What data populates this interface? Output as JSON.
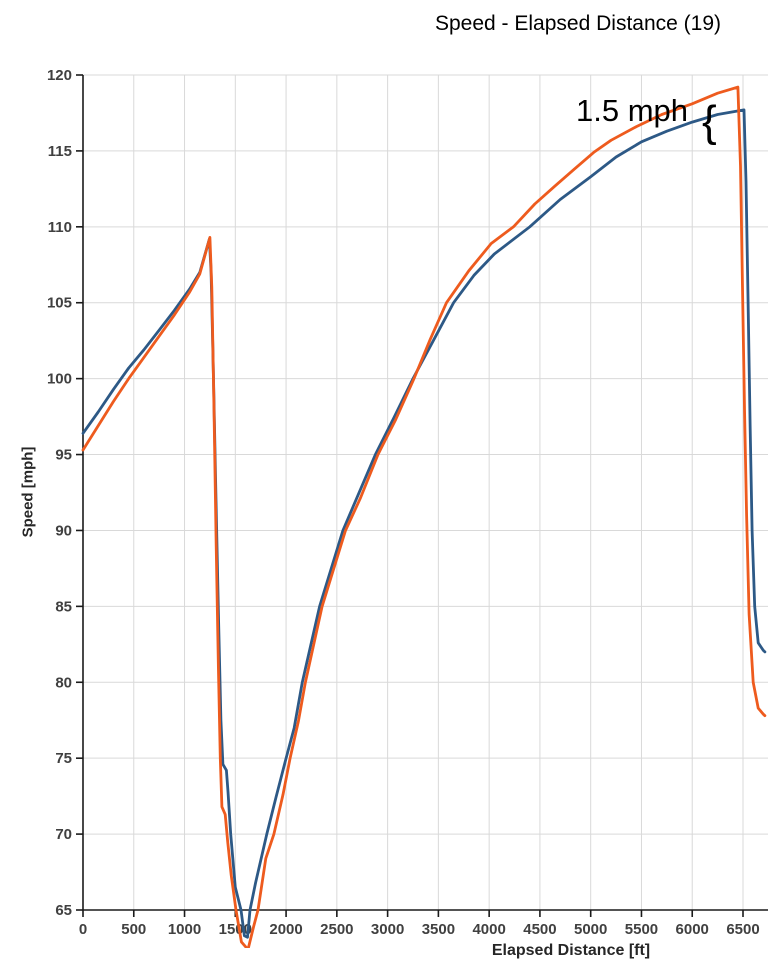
{
  "chart_data": {
    "type": "line",
    "title": "Speed - Elapsed Distance (19)",
    "xlabel": "Elapsed Distance [ft]",
    "ylabel": "Speed [mph]",
    "xlim": [
      0,
      6746
    ],
    "ylim": [
      65,
      120
    ],
    "xticks": [
      0,
      500,
      1000,
      1500,
      2000,
      2500,
      3000,
      3500,
      4000,
      4500,
      5000,
      5500,
      6000,
      6500
    ],
    "yticks": [
      65,
      70,
      75,
      80,
      85,
      90,
      95,
      100,
      105,
      110,
      115,
      120
    ],
    "grid": true,
    "legend_position": "none",
    "annotation": {
      "text": "1.5 mph",
      "brace": "{"
    },
    "colors": {
      "grid": "#D9D9D9",
      "axis": "#1A1A1A",
      "tick_label": "#404040",
      "title": "#000000"
    },
    "series": [
      {
        "id": "blue",
        "color": "#2D5986",
        "points": [
          [
            0,
            96.4
          ],
          [
            150,
            97.8
          ],
          [
            300,
            99.3
          ],
          [
            450,
            100.7
          ],
          [
            600,
            101.9
          ],
          [
            750,
            103.2
          ],
          [
            900,
            104.5
          ],
          [
            1050,
            105.9
          ],
          [
            1150,
            107.0
          ],
          [
            1245,
            109.2
          ],
          [
            1262,
            107.0
          ],
          [
            1285,
            100.0
          ],
          [
            1310,
            92.0
          ],
          [
            1335,
            84.0
          ],
          [
            1358,
            77.5
          ],
          [
            1378,
            74.6
          ],
          [
            1412,
            74.2
          ],
          [
            1428,
            72.8
          ],
          [
            1455,
            70.0
          ],
          [
            1500,
            66.5
          ],
          [
            1556,
            65.0
          ],
          [
            1590,
            63.3
          ],
          [
            1620,
            63.2
          ],
          [
            1645,
            65.0
          ],
          [
            1700,
            66.8
          ],
          [
            1810,
            70.0
          ],
          [
            1900,
            72.4
          ],
          [
            2000,
            75.0
          ],
          [
            2080,
            77.0
          ],
          [
            2160,
            80.0
          ],
          [
            2330,
            85.0
          ],
          [
            2560,
            90.0
          ],
          [
            2700,
            92.2
          ],
          [
            2880,
            95.0
          ],
          [
            3060,
            97.4
          ],
          [
            3250,
            100.0
          ],
          [
            3450,
            102.5
          ],
          [
            3650,
            105.0
          ],
          [
            3850,
            106.8
          ],
          [
            4050,
            108.2
          ],
          [
            4400,
            110.0
          ],
          [
            4700,
            111.8
          ],
          [
            5000,
            113.3
          ],
          [
            5250,
            114.6
          ],
          [
            5500,
            115.6
          ],
          [
            5750,
            116.3
          ],
          [
            6000,
            116.9
          ],
          [
            6250,
            117.4
          ],
          [
            6510,
            117.7
          ],
          [
            6530,
            113.0
          ],
          [
            6550,
            105.0
          ],
          [
            6570,
            97.0
          ],
          [
            6590,
            90.0
          ],
          [
            6615,
            85.0
          ],
          [
            6650,
            82.6
          ],
          [
            6700,
            82.1
          ],
          [
            6716,
            82.0
          ]
        ]
      },
      {
        "id": "orange",
        "color": "#EE5B1E",
        "points": [
          [
            0,
            95.3
          ],
          [
            150,
            96.9
          ],
          [
            300,
            98.5
          ],
          [
            450,
            100.0
          ],
          [
            600,
            101.4
          ],
          [
            750,
            102.8
          ],
          [
            900,
            104.2
          ],
          [
            1050,
            105.7
          ],
          [
            1150,
            106.9
          ],
          [
            1250,
            109.3
          ],
          [
            1268,
            106.0
          ],
          [
            1290,
            98.0
          ],
          [
            1312,
            89.0
          ],
          [
            1333,
            81.0
          ],
          [
            1352,
            75.0
          ],
          [
            1368,
            71.8
          ],
          [
            1400,
            71.3
          ],
          [
            1425,
            69.5
          ],
          [
            1460,
            67.3
          ],
          [
            1507,
            65.0
          ],
          [
            1560,
            62.9
          ],
          [
            1625,
            62.4
          ],
          [
            1680,
            63.9
          ],
          [
            1723,
            65.0
          ],
          [
            1800,
            68.4
          ],
          [
            1880,
            70.0
          ],
          [
            1970,
            72.6
          ],
          [
            2040,
            75.0
          ],
          [
            2120,
            77.4
          ],
          [
            2190,
            80.0
          ],
          [
            2355,
            85.0
          ],
          [
            2585,
            90.0
          ],
          [
            2730,
            92.1
          ],
          [
            2905,
            95.0
          ],
          [
            3080,
            97.3
          ],
          [
            3260,
            100.0
          ],
          [
            3420,
            102.6
          ],
          [
            3580,
            105.0
          ],
          [
            3800,
            107.1
          ],
          [
            4020,
            108.9
          ],
          [
            4240,
            110.0
          ],
          [
            4450,
            111.5
          ],
          [
            4650,
            112.7
          ],
          [
            4840,
            113.8
          ],
          [
            5030,
            114.9
          ],
          [
            5200,
            115.7
          ],
          [
            5450,
            116.6
          ],
          [
            5700,
            117.4
          ],
          [
            6000,
            118.1
          ],
          [
            6250,
            118.8
          ],
          [
            6450,
            119.2
          ],
          [
            6475,
            114.0
          ],
          [
            6495,
            106.0
          ],
          [
            6515,
            98.0
          ],
          [
            6535,
            91.0
          ],
          [
            6560,
            84.5
          ],
          [
            6600,
            80.0
          ],
          [
            6650,
            78.3
          ],
          [
            6700,
            77.9
          ],
          [
            6716,
            77.8
          ]
        ]
      }
    ]
  }
}
